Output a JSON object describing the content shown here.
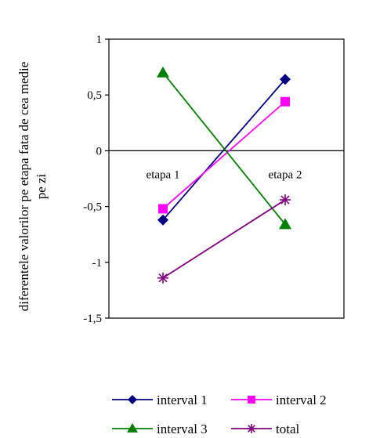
{
  "chart_data": {
    "type": "line",
    "categories": [
      "etapa 1",
      "etapa 2"
    ],
    "ylabel_lines": [
      "diferentele valorilor pe etapa fata de cea medie",
      "pe zi"
    ],
    "ylim": [
      -1.5,
      1
    ],
    "yticks": [
      1,
      0.5,
      0,
      -0.5,
      -1,
      -1.5
    ],
    "ytick_labels": [
      "1",
      "0,5",
      "0",
      "-0,5",
      "-1",
      "-1,5"
    ],
    "grid": false,
    "legend_position": "bottom",
    "series": [
      {
        "name": "interval 1",
        "values": [
          -0.62,
          0.64
        ],
        "color": "#000080",
        "marker": "diamond"
      },
      {
        "name": "interval 2",
        "values": [
          -0.52,
          0.44
        ],
        "color": "#FF00FF",
        "marker": "square"
      },
      {
        "name": "interval 3",
        "values": [
          0.7,
          -0.66
        ],
        "color": "#008000",
        "marker": "triangle"
      },
      {
        "name": "total",
        "values": [
          -1.14,
          -0.44
        ],
        "color": "#800080",
        "marker": "asterisk"
      }
    ]
  }
}
